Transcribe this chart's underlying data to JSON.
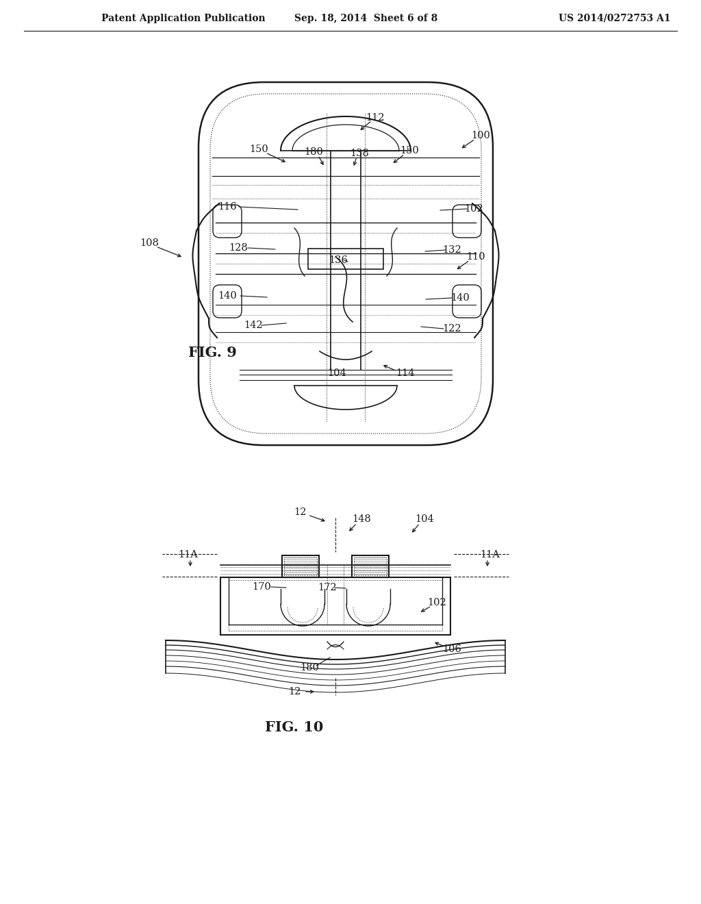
{
  "background_color": "#ffffff",
  "line_color": "#1a1a1a",
  "text_color": "#1a1a1a",
  "header_left": "Patent Application Publication",
  "header_center": "Sep. 18, 2014  Sheet 6 of 8",
  "header_right": "US 2014/0272753 A1",
  "fig9_label": "FIG. 9",
  "fig10_label": "FIG. 10"
}
